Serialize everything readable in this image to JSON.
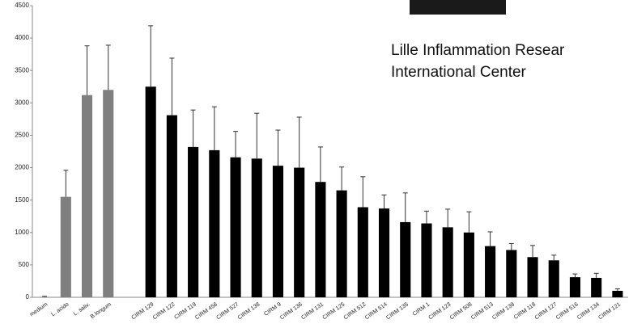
{
  "chart_data": {
    "type": "bar",
    "categories": [
      "medium",
      "L. acido",
      "L. saliv.",
      "B.longum",
      null,
      "CIRM 129",
      "CIRM 122",
      "CIRM 119",
      "CIRM 456",
      "CIRM 527",
      "CIRM 138",
      "CIRM 9",
      "CIRM 136",
      "CIRM 131",
      "CIRM 125",
      "CIRM 512",
      "CIRM 514",
      "CIRM 135",
      "CIRM 1",
      "CIRM 123",
      "CIRM 508",
      "CIRM 513",
      "CIRM 139",
      "CIRM 118",
      "CIRM 127",
      "CIRM 516",
      "CIRM 134",
      "CIRM 121"
    ],
    "values": [
      5,
      1550,
      3120,
      3200,
      null,
      3250,
      2810,
      2320,
      2270,
      2160,
      2140,
      2030,
      2000,
      1780,
      1650,
      1390,
      1370,
      1160,
      1140,
      1080,
      1000,
      790,
      730,
      620,
      570,
      310,
      300,
      100
    ],
    "errors": [
      10,
      410,
      760,
      690,
      null,
      940,
      880,
      570,
      670,
      400,
      700,
      550,
      780,
      540,
      360,
      470,
      210,
      450,
      190,
      280,
      320,
      220,
      100,
      180,
      80,
      50,
      70,
      30
    ],
    "colors": [
      "#7f7f7f",
      "#7f7f7f",
      "#7f7f7f",
      "#7f7f7f",
      null,
      "#000000",
      "#000000",
      "#000000",
      "#000000",
      "#000000",
      "#000000",
      "#000000",
      "#000000",
      "#000000",
      "#000000",
      "#000000",
      "#000000",
      "#000000",
      "#000000",
      "#000000",
      "#000000",
      "#000000",
      "#000000",
      "#000000",
      "#000000",
      "#000000",
      "#000000",
      "#000000"
    ],
    "ylim": [
      0,
      4500
    ],
    "yticks": [
      0,
      500,
      1000,
      1500,
      2000,
      2500,
      3000,
      3500,
      4000,
      4500
    ],
    "grid": false,
    "overlay_text": [
      "Lille Inflammation Resear",
      "International Center"
    ]
  }
}
